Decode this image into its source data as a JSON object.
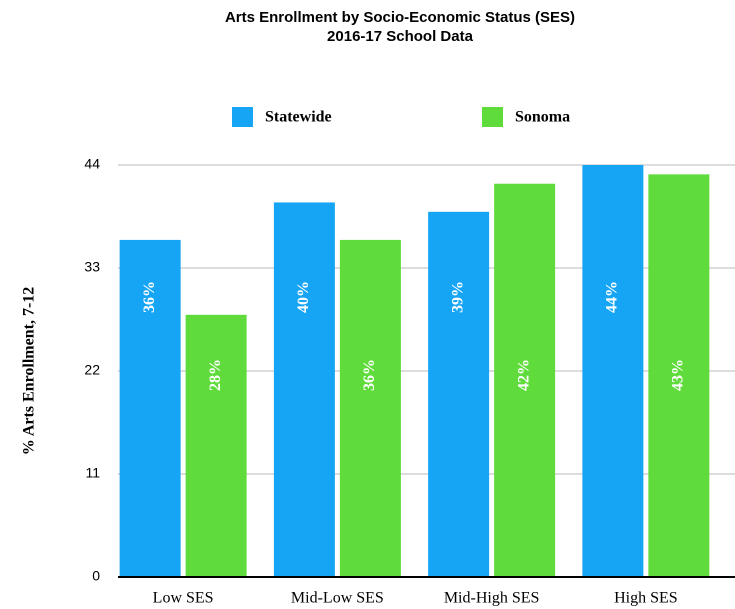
{
  "chart_data": {
    "type": "bar",
    "title": "Arts Enrollment by Socio-Economic Status (SES)",
    "subtitle": "2016-17 School Data",
    "y_label": "% Arts Enrollment, 7-12",
    "categories": [
      "Low SES",
      "Mid-Low SES",
      "Mid-High SES",
      "High SES"
    ],
    "series": [
      {
        "name": "Statewide",
        "color": "#16a5f5",
        "values": [
          36,
          40,
          39,
          44
        ],
        "value_labels": [
          "36%",
          "40%",
          "39%",
          "44%"
        ]
      },
      {
        "name": "Sonoma",
        "color": "#5fdb3b",
        "values": [
          28,
          36,
          42,
          43
        ],
        "value_labels": [
          "28%",
          "36%",
          "42%",
          "43%"
        ]
      }
    ],
    "ylim": [
      0,
      44
    ],
    "yticks": [
      0,
      11,
      22,
      33,
      44
    ],
    "grid": true,
    "legend": "top"
  }
}
